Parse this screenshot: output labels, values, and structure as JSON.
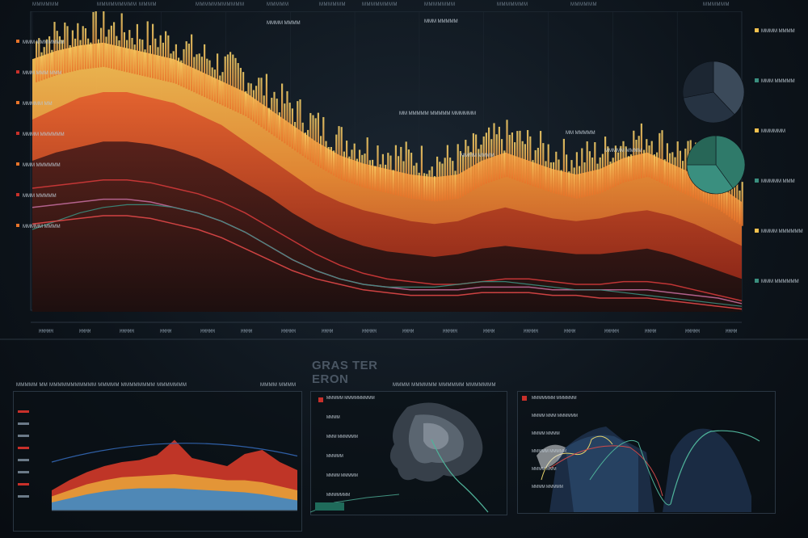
{
  "dashboard": {
    "title": "GRAS TER ERON",
    "header_tabs": [
      "MMMMMM",
      "MMMMMMMMM",
      "MMMM",
      "MMMMMMMMMMM",
      "MMMMM",
      "MMMMMM",
      "MMMMMMMM",
      "MMMMMMM",
      "MMMMMMM",
      "MMMMMM",
      "MMMMMM"
    ],
    "bottom_left_heading": "MMMMM MM MMMMMMMMMMM MMMMM MMMMMMMM MMMMMMM",
    "bottom_left_tag": "MMMM MMMM",
    "bottom_center_heading": "MMMM MMMMMM MMMMMM MMMMMMM"
  },
  "colors": {
    "background": "#0c1219",
    "orange": "#e8742a",
    "yellow": "#f2c14e",
    "red": "#c8302a",
    "dark_red": "#6b1414",
    "teal": "#3a8f7f",
    "pie_dark": "#2d3a48",
    "pie_teal": "#2f7a6a"
  },
  "chart_data": [
    {
      "type": "area",
      "title": "",
      "xlabel": "",
      "ylabel": "",
      "ylim": [
        0,
        100
      ],
      "x": [
        0,
        1,
        2,
        3,
        4,
        5,
        6,
        7,
        8,
        9,
        10,
        11,
        12,
        13,
        14,
        15,
        16,
        17,
        18,
        19,
        20,
        21,
        22,
        23,
        24,
        25,
        26,
        27,
        28,
        29,
        30
      ],
      "series": [
        {
          "values": [
            92,
            95,
            97,
            98,
            96,
            94,
            92,
            88,
            84,
            80,
            74,
            68,
            62,
            57,
            54,
            52,
            50,
            49,
            50,
            55,
            58,
            55,
            52,
            50,
            52,
            56,
            58,
            54,
            50,
            46,
            40
          ]
        },
        {
          "values": [
            70,
            74,
            78,
            80,
            80,
            78,
            76,
            72,
            68,
            62,
            56,
            50,
            44,
            40,
            37,
            35,
            33,
            32,
            33,
            36,
            38,
            36,
            34,
            33,
            34,
            36,
            37,
            35,
            32,
            28,
            24
          ]
        },
        {
          "values": [
            55,
            58,
            60,
            62,
            62,
            61,
            59,
            56,
            52,
            47,
            42,
            36,
            31,
            27,
            24,
            22,
            21,
            20,
            21,
            23,
            24,
            23,
            22,
            21,
            21,
            22,
            23,
            21,
            18,
            15,
            12
          ]
        }
      ],
      "line_series": [
        {
          "values": [
            45,
            46,
            47,
            48,
            48,
            47,
            45,
            43,
            40,
            36,
            31,
            26,
            21,
            17,
            14,
            12,
            11,
            10,
            10,
            11,
            12,
            12,
            11,
            10,
            10,
            11,
            11,
            10,
            8,
            6,
            4
          ]
        },
        {
          "values": [
            38,
            39,
            40,
            41,
            41,
            40,
            38,
            36,
            33,
            29,
            24,
            19,
            15,
            12,
            10,
            9,
            8,
            8,
            8,
            9,
            9,
            9,
            8,
            8,
            8,
            8,
            8,
            7,
            6,
            5,
            3
          ]
        },
        {
          "values": [
            30,
            33,
            36,
            38,
            39,
            39,
            38,
            36,
            33,
            29,
            24,
            19,
            15,
            12,
            10,
            9,
            9,
            9,
            10,
            11,
            11,
            10,
            9,
            8,
            8,
            7,
            6,
            5,
            4,
            3,
            2
          ]
        },
        {
          "values": [
            32,
            33,
            34,
            35,
            35,
            34,
            32,
            30,
            27,
            23,
            19,
            15,
            12,
            10,
            8,
            7,
            6,
            6,
            6,
            7,
            7,
            7,
            6,
            6,
            5,
            5,
            5,
            4,
            3,
            2,
            1
          ]
        }
      ]
    },
    {
      "type": "pie",
      "values": [
        38,
        34,
        28
      ],
      "colors": [
        "#3b4a5a",
        "#263342",
        "#1c2632"
      ]
    },
    {
      "type": "pie",
      "values": [
        40,
        35,
        25
      ],
      "colors": [
        "#2f7a6a",
        "#3a8f7f",
        "#276657"
      ]
    },
    {
      "type": "area",
      "title": "",
      "x": [
        0,
        1,
        2,
        3,
        4,
        5,
        6,
        7,
        8,
        9,
        10,
        11,
        12,
        13,
        14
      ],
      "series": [
        {
          "values": [
            20,
            30,
            38,
            44,
            48,
            50,
            55,
            70,
            52,
            48,
            44,
            56,
            60,
            48,
            40
          ]
        },
        {
          "values": [
            14,
            20,
            26,
            30,
            33,
            34,
            35,
            36,
            34,
            32,
            30,
            30,
            28,
            24,
            20
          ]
        },
        {
          "values": [
            8,
            12,
            16,
            19,
            21,
            22,
            22,
            22,
            21,
            20,
            19,
            18,
            16,
            13,
            10
          ]
        }
      ]
    }
  ],
  "left_legend": [
    "MMM MMMMMMM",
    "MMM MMM MMM",
    "MMMMM MM",
    "MMMM MMMMMM",
    "MMM MMMMMM",
    "MMM MMMMM",
    "MMMMM MMMM"
  ],
  "right_labels": [
    "MMMM MMMM",
    "MMM MMMMM",
    "MMMMMM",
    "MMMMM MMM",
    "MMMM MMMMMM",
    "MMM MMMMMM"
  ],
  "annotations": [
    "MMMM MMMM",
    "MMM MMMMM",
    "MM MMMMM MMMMM MMMMMM",
    "MMMM MMMM",
    "MM MMMMM",
    "MMMMM MMMM"
  ],
  "center_panel_rows": [
    "MMMMM MMMMMMMMM",
    "MMMM",
    "MMM MMMMMM",
    "MMMMM",
    "MMMM MMMMM",
    "MMMMMMM"
  ],
  "right_panel_rows": [
    "MMMMMMM MMMMMM",
    "MMMM MMM MMMMMM",
    "MMMM MMMM",
    "MMMMM MMMMM",
    "MMMM MMM",
    "MMMM MMMMM"
  ],
  "x_ticks": [
    "MMMMM",
    "MMMM",
    "MMMMM",
    "MMMM",
    "MMMMM",
    "MMMM",
    "MMMMM",
    "MMMM",
    "MMMMM",
    "MMMM",
    "MMMMM",
    "MMMM",
    "MMMMM",
    "MMMM",
    "MMMMM",
    "MMMM",
    "MMMMM",
    "MMMM"
  ]
}
